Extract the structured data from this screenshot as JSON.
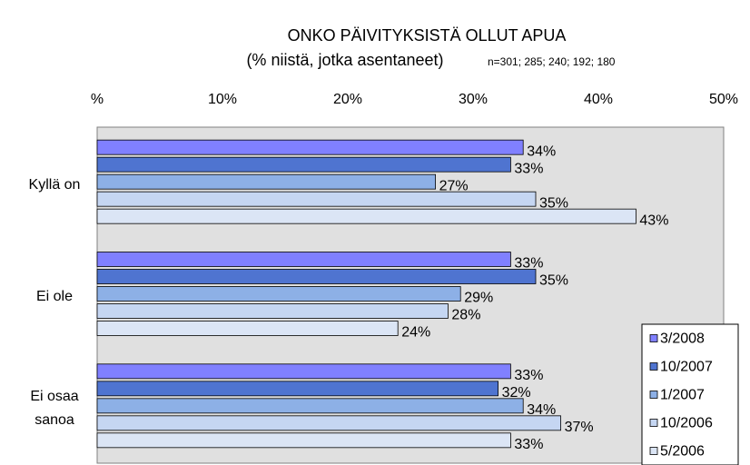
{
  "chart_data": {
    "type": "bar",
    "orientation": "horizontal",
    "title": "ONKO PÄIVITYKSISTÄ OLLUT APUA",
    "subtitle": "(% niistä, jotka asentaneet)",
    "note": "n=301; 285; 240; 192; 180",
    "categories": [
      "Kyllä on",
      "Ei ole",
      "Ei osaa sanoa"
    ],
    "series": [
      {
        "name": "3/2008",
        "color": "#8080ff",
        "values": [
          34,
          33,
          33
        ],
        "value_labels": [
          "34%",
          "33%",
          "33%"
        ]
      },
      {
        "name": "10/2007",
        "color": "#4f74d0",
        "values": [
          33,
          35,
          32
        ],
        "value_labels": [
          "33%",
          "35%",
          "32%"
        ]
      },
      {
        "name": "1/2007",
        "color": "#8db0e6",
        "values": [
          27,
          29,
          34
        ],
        "value_labels": [
          "27%",
          "29%",
          "34%"
        ]
      },
      {
        "name": "10/2006",
        "color": "#c5d6f2",
        "values": [
          35,
          28,
          37
        ],
        "value_labels": [
          "35%",
          "28%",
          "37%"
        ]
      },
      {
        "name": "5/2006",
        "color": "#dbe5f5",
        "values": [
          43,
          24,
          33
        ],
        "value_labels": [
          "43%",
          "24%",
          "33%"
        ]
      }
    ],
    "xlim": [
      0,
      50
    ],
    "xticks": [
      {
        "value": 0,
        "label": "%"
      },
      {
        "value": 10,
        "label": "10%"
      },
      {
        "value": 20,
        "label": "20%"
      },
      {
        "value": 30,
        "label": "30%"
      },
      {
        "value": 40,
        "label": "40%"
      },
      {
        "value": 50,
        "label": "50%"
      }
    ],
    "legend": "lower right"
  }
}
